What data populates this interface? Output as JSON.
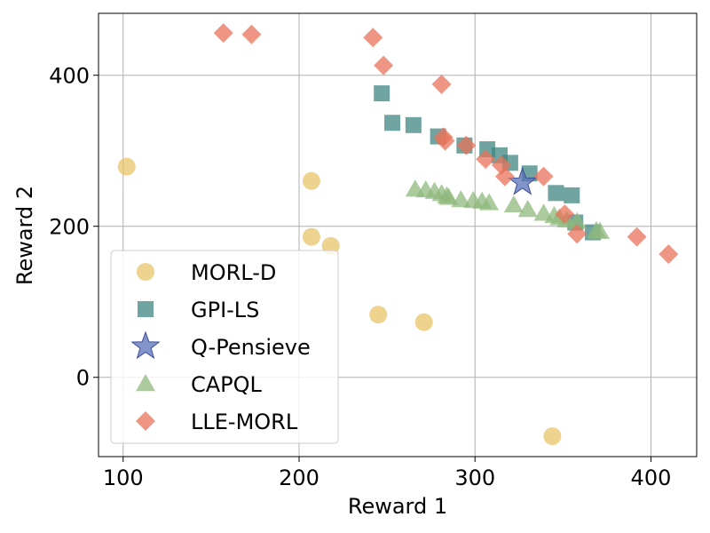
{
  "chart_data": {
    "type": "scatter",
    "title": "",
    "xlabel": "Reward 1",
    "ylabel": "Reward 2",
    "xlim": [
      86,
      426
    ],
    "ylim": [
      -105,
      482
    ],
    "xticks": [
      100,
      200,
      300,
      400
    ],
    "yticks": [
      0,
      200,
      400
    ],
    "grid": true,
    "legend_position": "lower-left",
    "series": [
      {
        "name": "MORL-D",
        "marker": "circle",
        "color": "#e8c46a",
        "points": [
          [
            102,
            279
          ],
          [
            207,
            260
          ],
          [
            207,
            186
          ],
          [
            218,
            174
          ],
          [
            245,
            83
          ],
          [
            271,
            73
          ],
          [
            344,
            -78
          ]
        ]
      },
      {
        "name": "GPI-LS",
        "marker": "square",
        "color": "#3f8580",
        "points": [
          [
            247,
            376
          ],
          [
            253,
            337
          ],
          [
            265,
            334
          ],
          [
            279,
            319
          ],
          [
            294,
            307
          ],
          [
            307,
            302
          ],
          [
            314,
            294
          ],
          [
            320,
            284
          ],
          [
            331,
            270
          ],
          [
            346,
            244
          ],
          [
            355,
            241
          ],
          [
            357,
            205
          ],
          [
            367,
            192
          ]
        ]
      },
      {
        "name": "Q-Pensieve",
        "marker": "star",
        "color": "#5a70b8",
        "points": [
          [
            327,
            258
          ]
        ]
      },
      {
        "name": "CAPQL",
        "marker": "triangle",
        "color": "#8fb87c",
        "points": [
          [
            266,
            249
          ],
          [
            272,
            248
          ],
          [
            277,
            246
          ],
          [
            281,
            243
          ],
          [
            284,
            240
          ],
          [
            285,
            238
          ],
          [
            292,
            235
          ],
          [
            299,
            234
          ],
          [
            304,
            233
          ],
          [
            308,
            231
          ],
          [
            322,
            228
          ],
          [
            330,
            222
          ],
          [
            339,
            217
          ],
          [
            345,
            214
          ],
          [
            348,
            211
          ],
          [
            352,
            208
          ],
          [
            358,
            206
          ],
          [
            369,
            194
          ],
          [
            371,
            193
          ]
        ]
      },
      {
        "name": "LLE-MORL",
        "marker": "diamond",
        "color": "#e8735a",
        "points": [
          [
            157,
            456
          ],
          [
            173,
            454
          ],
          [
            242,
            450
          ],
          [
            248,
            413
          ],
          [
            281,
            388
          ],
          [
            282,
            318
          ],
          [
            283,
            313
          ],
          [
            295,
            307
          ],
          [
            306,
            289
          ],
          [
            315,
            281
          ],
          [
            317,
            266
          ],
          [
            339,
            266
          ],
          [
            351,
            216
          ],
          [
            358,
            190
          ],
          [
            392,
            186
          ],
          [
            410,
            163
          ]
        ]
      }
    ]
  }
}
